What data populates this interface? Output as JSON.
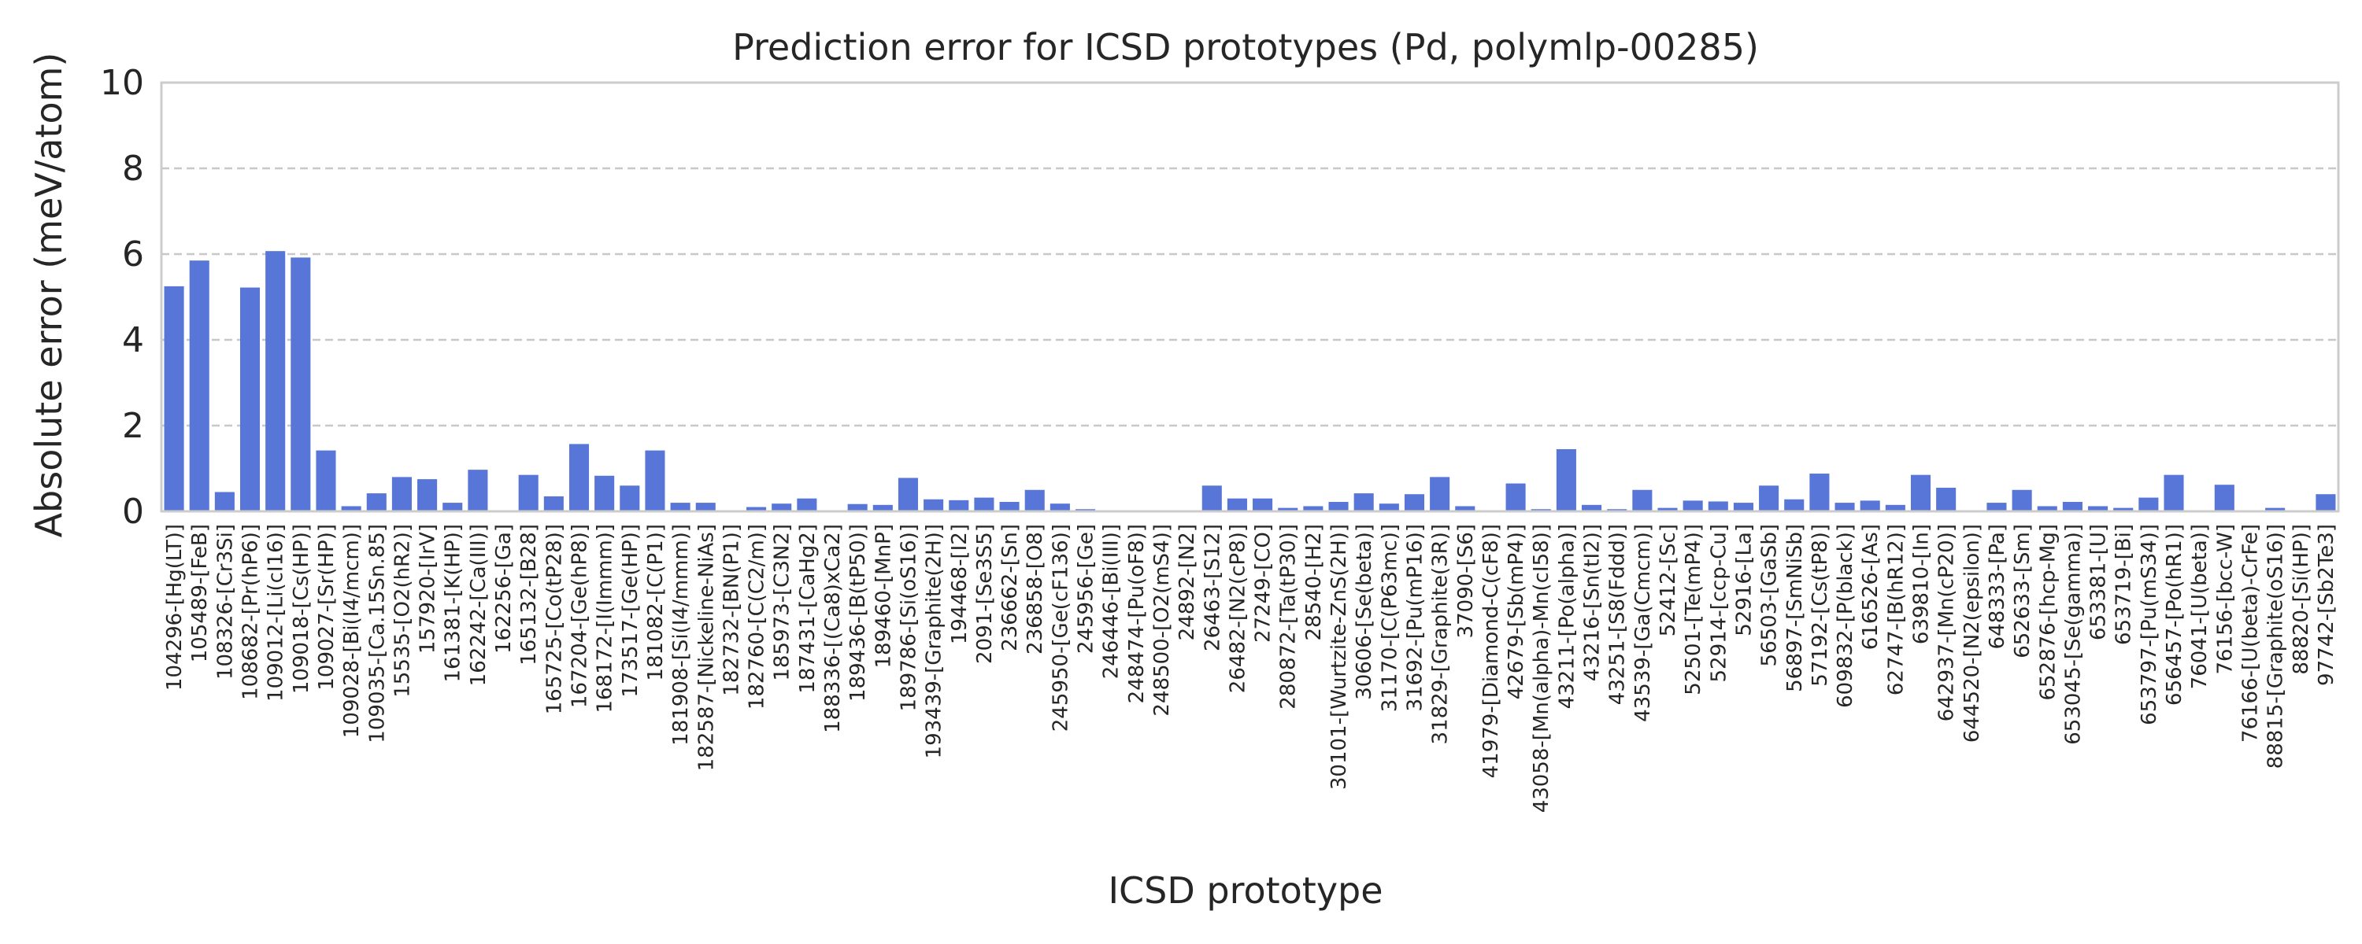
{
  "chart_data": {
    "type": "bar",
    "title": "Prediction error for ICSD prototypes (Pd, polymlp-00285)",
    "xlabel": "ICSD prototype",
    "ylabel": "Absolute error (meV/atom)",
    "ylim": [
      0,
      10
    ],
    "yticks": [
      0,
      2,
      4,
      6,
      8,
      10
    ],
    "grid": "horizontal dashed",
    "bar_color": "#5875d8",
    "categories": [
      "104296-[Hg(LT)]",
      "105489-[FeB]",
      "108326-[Cr3Si]",
      "108682-[Pr(hP6)]",
      "109012-[Li(cI16)]",
      "109018-[Cs(HP)]",
      "109027-[Sr(HP)]",
      "109028-[Bi(I4/mcm)]",
      "109035-[Ca.15Sn.85]",
      "15535-[O2(hR2)]",
      "157920-[IrV]",
      "161381-[K(HP)]",
      "162242-[Ca(III)]",
      "162256-[Ga]",
      "165132-[B28]",
      "165725-[Co(tP28)]",
      "167204-[Ge(hP8)]",
      "168172-[I(Immm)]",
      "173517-[Ge(HP)]",
      "181082-[C(P1)]",
      "181908-[Si(I4/mmm)]",
      "182587-[Nickeline-NiAs]",
      "182732-[BN(P1)]",
      "182760-[C(C2/m)]",
      "185973-[C3N2]",
      "187431-[CaHg2]",
      "188336-[(Ca8)xCa2]",
      "189436-[B(tP50)]",
      "189460-[MnP]",
      "189786-[Si(oS16)]",
      "193439-[Graphite(2H)]",
      "194468-[I2]",
      "2091-[Se3S5]",
      "236662-[Sn]",
      "236858-[O8]",
      "245950-[Ge(cF136)]",
      "245956-[Ge]",
      "246446-[Bi(III)]",
      "248474-[Pu(oF8)]",
      "248500-[O2(mS4)]",
      "24892-[N2]",
      "26463-[S12]",
      "26482-[N2(cP8)]",
      "27249-[CO]",
      "280872-[Ta(tP30)]",
      "28540-[H2]",
      "30101-[Wurtzite-ZnS(2H)]",
      "30606-[Se(beta)]",
      "31170-[C(P63mc)]",
      "31692-[Pu(mP16)]",
      "31829-[Graphite(3R)]",
      "37090-[S6]",
      "41979-[Diamond-C(cF8)]",
      "42679-[Sb(mP4)]",
      "43058-[Mn(alpha)-Mn(cI58)]",
      "43211-[Po(alpha)]",
      "43216-[Sn(tI2)]",
      "43251-[S8(Fddd)]",
      "43539-[Ga(Cmcm)]",
      "52412-[Sc]",
      "52501-[Te(mP4)]",
      "52914-[ccp-Cu]",
      "52916-[La]",
      "56503-[GaSb]",
      "56897-[SmNiSb]",
      "57192-[Cs(tP8)]",
      "609832-[P(black)]",
      "616526-[As]",
      "62747-[B(hR12)]",
      "639810-[In]",
      "642937-[Mn(cP20)]",
      "644520-[N2(epsilon)]",
      "648333-[Pa]",
      "652633-[Sm]",
      "652876-[hcp-Mg]",
      "653045-[Se(gamma)]",
      "653381-[U]",
      "653719-[Bi]",
      "653797-[Pu(mS34)]",
      "656457-[Po(hR1)]",
      "76041-[U(beta)]",
      "76156-[bcc-W]",
      "76166-[U(beta)-CrFe]",
      "88815-[Graphite(oS16)]",
      "88820-[Si(HP)]",
      "97742-[Sb2Te3]"
    ],
    "values": [
      5.25,
      5.85,
      0.45,
      5.22,
      6.07,
      5.92,
      1.42,
      0.12,
      0.42,
      0.8,
      0.75,
      0.2,
      0.97,
      0.0,
      0.85,
      0.35,
      1.57,
      0.83,
      0.6,
      1.42,
      0.2,
      0.2,
      0.02,
      0.1,
      0.18,
      0.3,
      0.02,
      0.17,
      0.15,
      0.78,
      0.28,
      0.26,
      0.32,
      0.22,
      0.5,
      0.18,
      0.05,
      0.02,
      0.02,
      0.02,
      0.02,
      0.6,
      0.3,
      0.3,
      0.08,
      0.12,
      0.22,
      0.42,
      0.18,
      0.4,
      0.8,
      0.12,
      0.02,
      0.65,
      0.05,
      1.45,
      0.15,
      0.05,
      0.5,
      0.08,
      0.25,
      0.23,
      0.2,
      0.6,
      0.28,
      0.88,
      0.2,
      0.25,
      0.15,
      0.85,
      0.55,
      0.02,
      0.2,
      0.5,
      0.12,
      0.22,
      0.12,
      0.08,
      0.32,
      0.85,
      0.02,
      0.62,
      0.02,
      0.08,
      0.02,
      0.4
    ]
  }
}
